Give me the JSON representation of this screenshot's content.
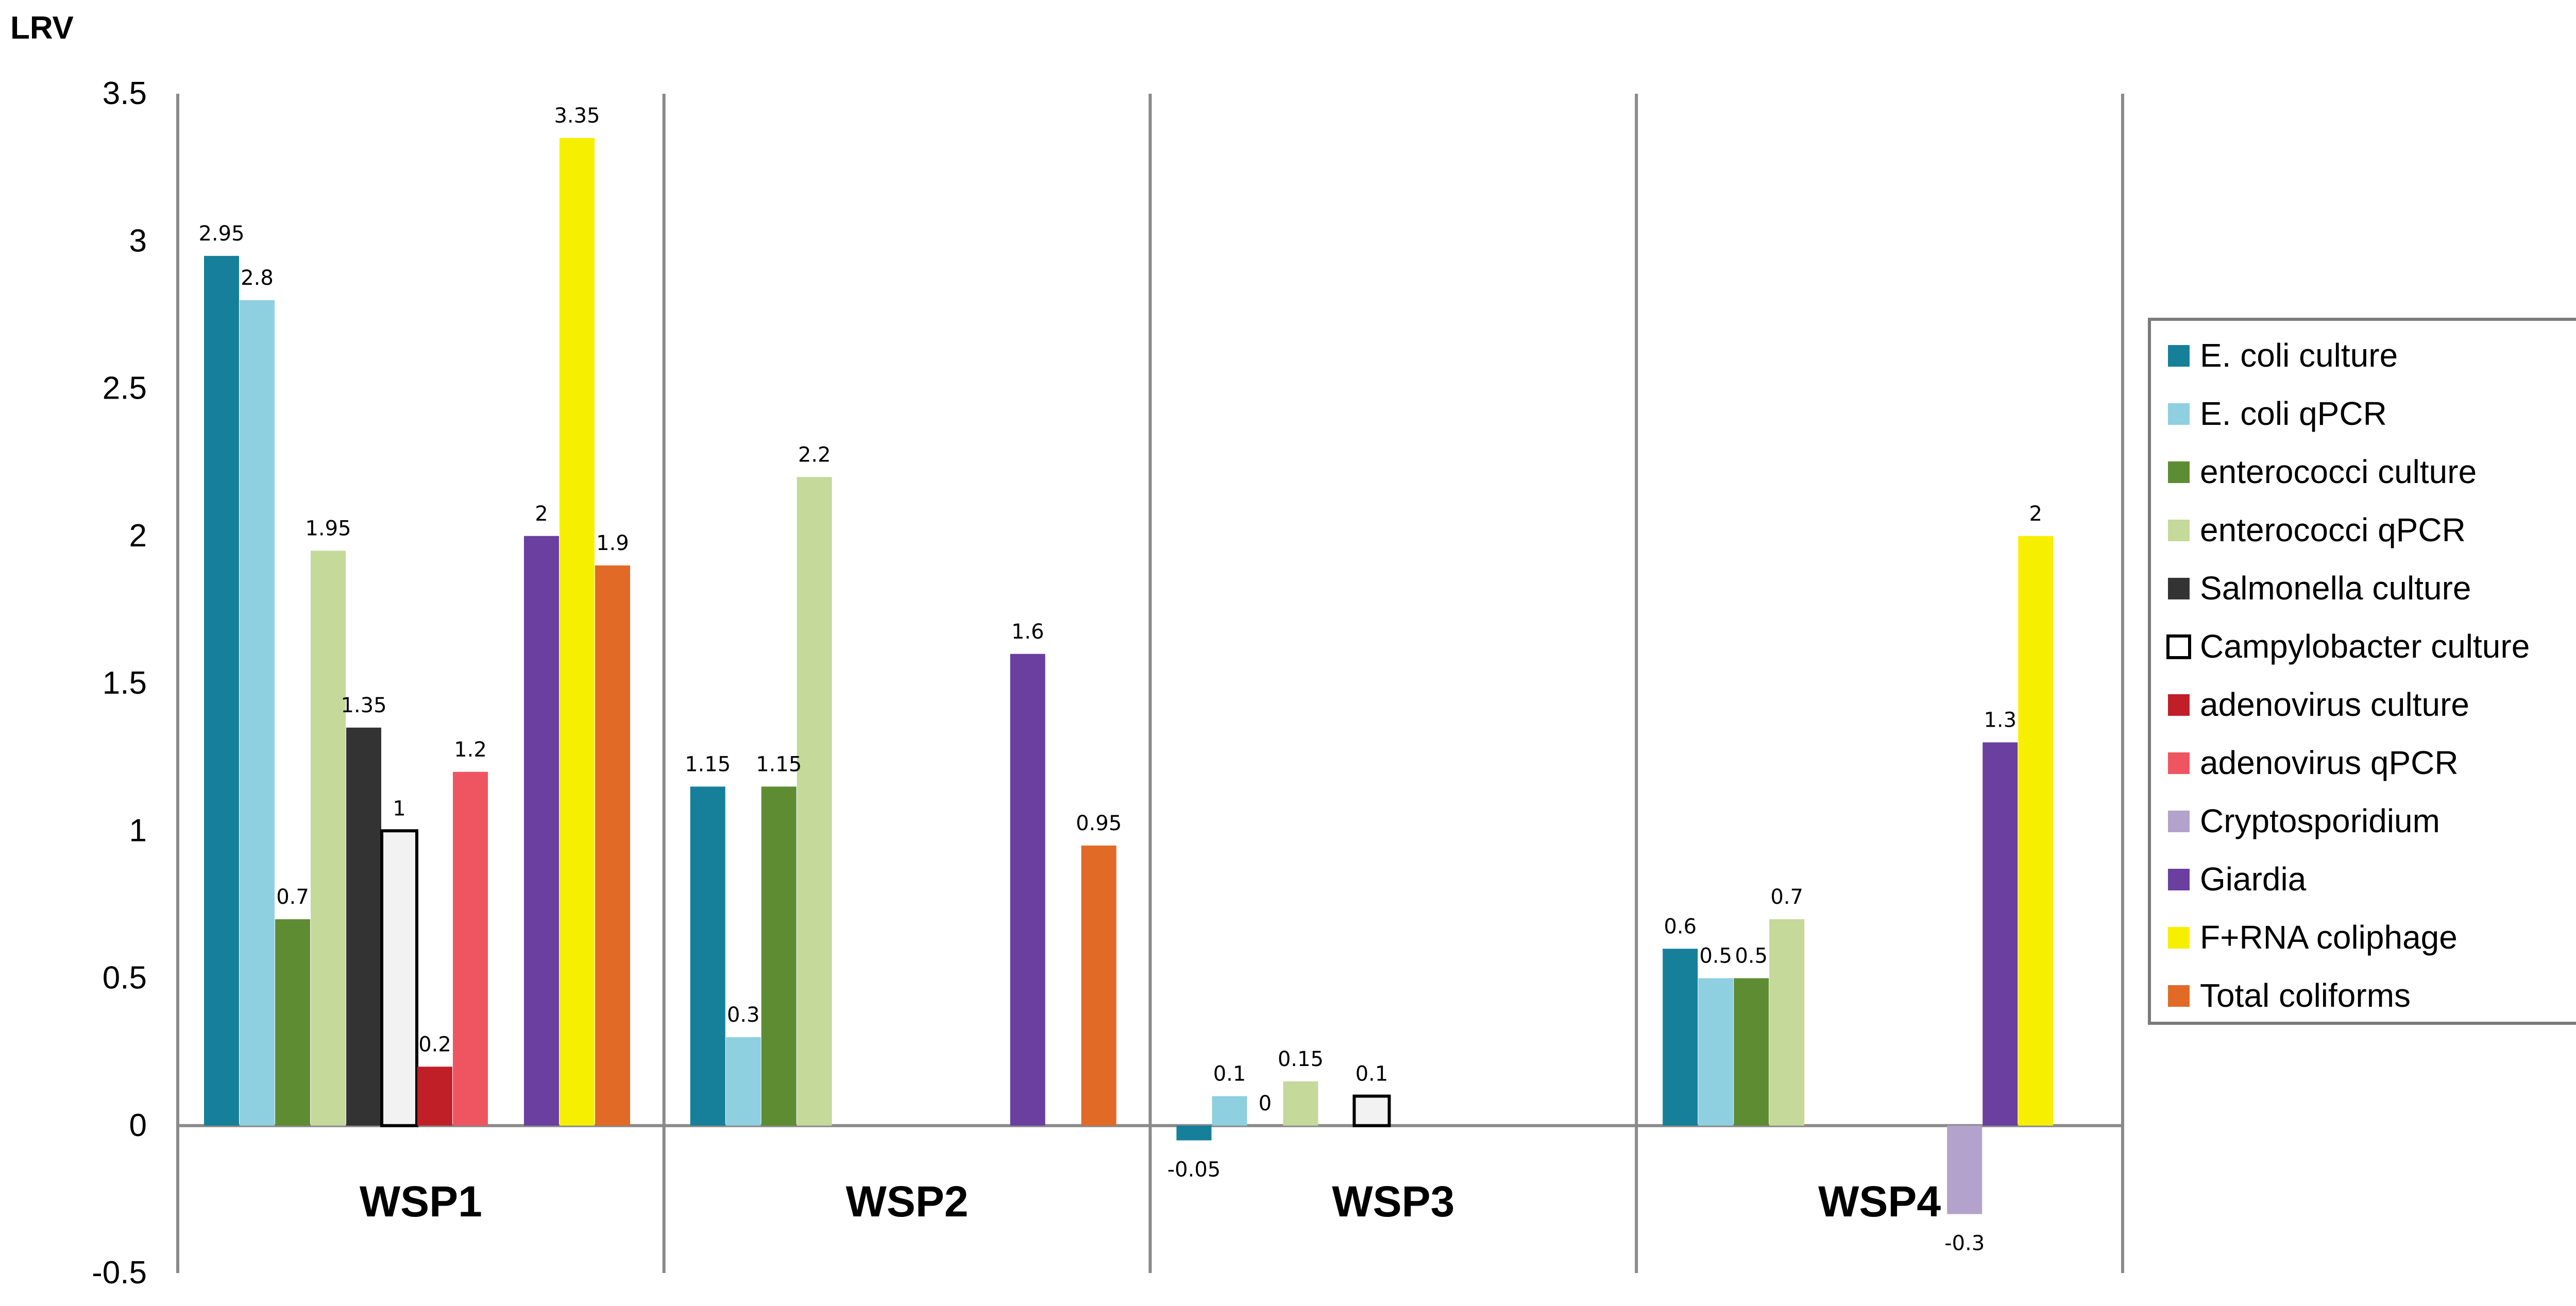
{
  "chart_data": {
    "type": "bar",
    "ylabel": "LRV",
    "xlabel": "",
    "ylim": [
      -0.5,
      3.5
    ],
    "yticks": [
      "3.5",
      "3",
      "2.5",
      "2",
      "1.5",
      "1",
      "0.5",
      "0",
      "-0.5"
    ],
    "categories": [
      "WSP1",
      "WSP2",
      "WSP3",
      "WSP4"
    ],
    "legend_position": "right",
    "series": [
      {
        "name": "E. coli culture",
        "color": "#16809a",
        "values": [
          2.95,
          1.15,
          -0.05,
          0.6
        ],
        "labels": [
          "2.95",
          "1.15",
          "-0.05",
          "0.6"
        ]
      },
      {
        "name": "E. coli qPCR",
        "color": "#8ecfe0",
        "values": [
          2.8,
          0.3,
          0.1,
          0.5
        ],
        "labels": [
          "2.8",
          "0.3",
          "0.1",
          "0.5"
        ]
      },
      {
        "name": "enterococci culture",
        "color": "#5e8c33",
        "values": [
          0.7,
          1.15,
          0,
          0.5
        ],
        "labels": [
          "0.7",
          "1.15",
          "0",
          "0.5"
        ]
      },
      {
        "name": "enterococci qPCR",
        "color": "#c4d99a",
        "values": [
          1.95,
          2.2,
          0.15,
          0.7
        ],
        "labels": [
          "1.95",
          "2.2",
          "0.15",
          "0.7"
        ]
      },
      {
        "name": "Salmonella culture",
        "color": "#333333",
        "values": [
          1.35,
          null,
          null,
          null
        ],
        "labels": [
          "1.35",
          "",
          "",
          ""
        ]
      },
      {
        "name": "Campylobacter culture",
        "color": "#f2f2f2",
        "values": [
          1,
          null,
          0.1,
          null
        ],
        "labels": [
          "1",
          "",
          "0.1",
          ""
        ]
      },
      {
        "name": "adenovirus culture",
        "color": "#c01f28",
        "values": [
          0.2,
          null,
          null,
          null
        ],
        "labels": [
          "0.2",
          "",
          "",
          ""
        ]
      },
      {
        "name": "adenovirus qPCR",
        "color": "#ef5560",
        "values": [
          1.2,
          null,
          null,
          null
        ],
        "labels": [
          "1.2",
          "",
          "",
          ""
        ]
      },
      {
        "name": "Cryptosporidium",
        "color": "#b2a2cc",
        "values": [
          null,
          null,
          null,
          -0.3
        ],
        "labels": [
          "",
          "",
          "",
          "-0.3"
        ]
      },
      {
        "name": "Giardia",
        "color": "#6a3fa0",
        "values": [
          2,
          1.6,
          null,
          1.3
        ],
        "labels": [
          "2",
          "1.6",
          "",
          "1.3"
        ]
      },
      {
        "name": "F+RNA coliphage",
        "color": "#f7ef00",
        "values": [
          3.35,
          null,
          null,
          2
        ],
        "labels": [
          "3.35",
          "",
          "",
          "2"
        ]
      },
      {
        "name": "Total coliforms",
        "color": "#e06a26",
        "values": [
          1.9,
          0.95,
          null,
          null
        ],
        "labels": [
          "1.9",
          "0.95",
          "",
          ""
        ]
      }
    ]
  }
}
